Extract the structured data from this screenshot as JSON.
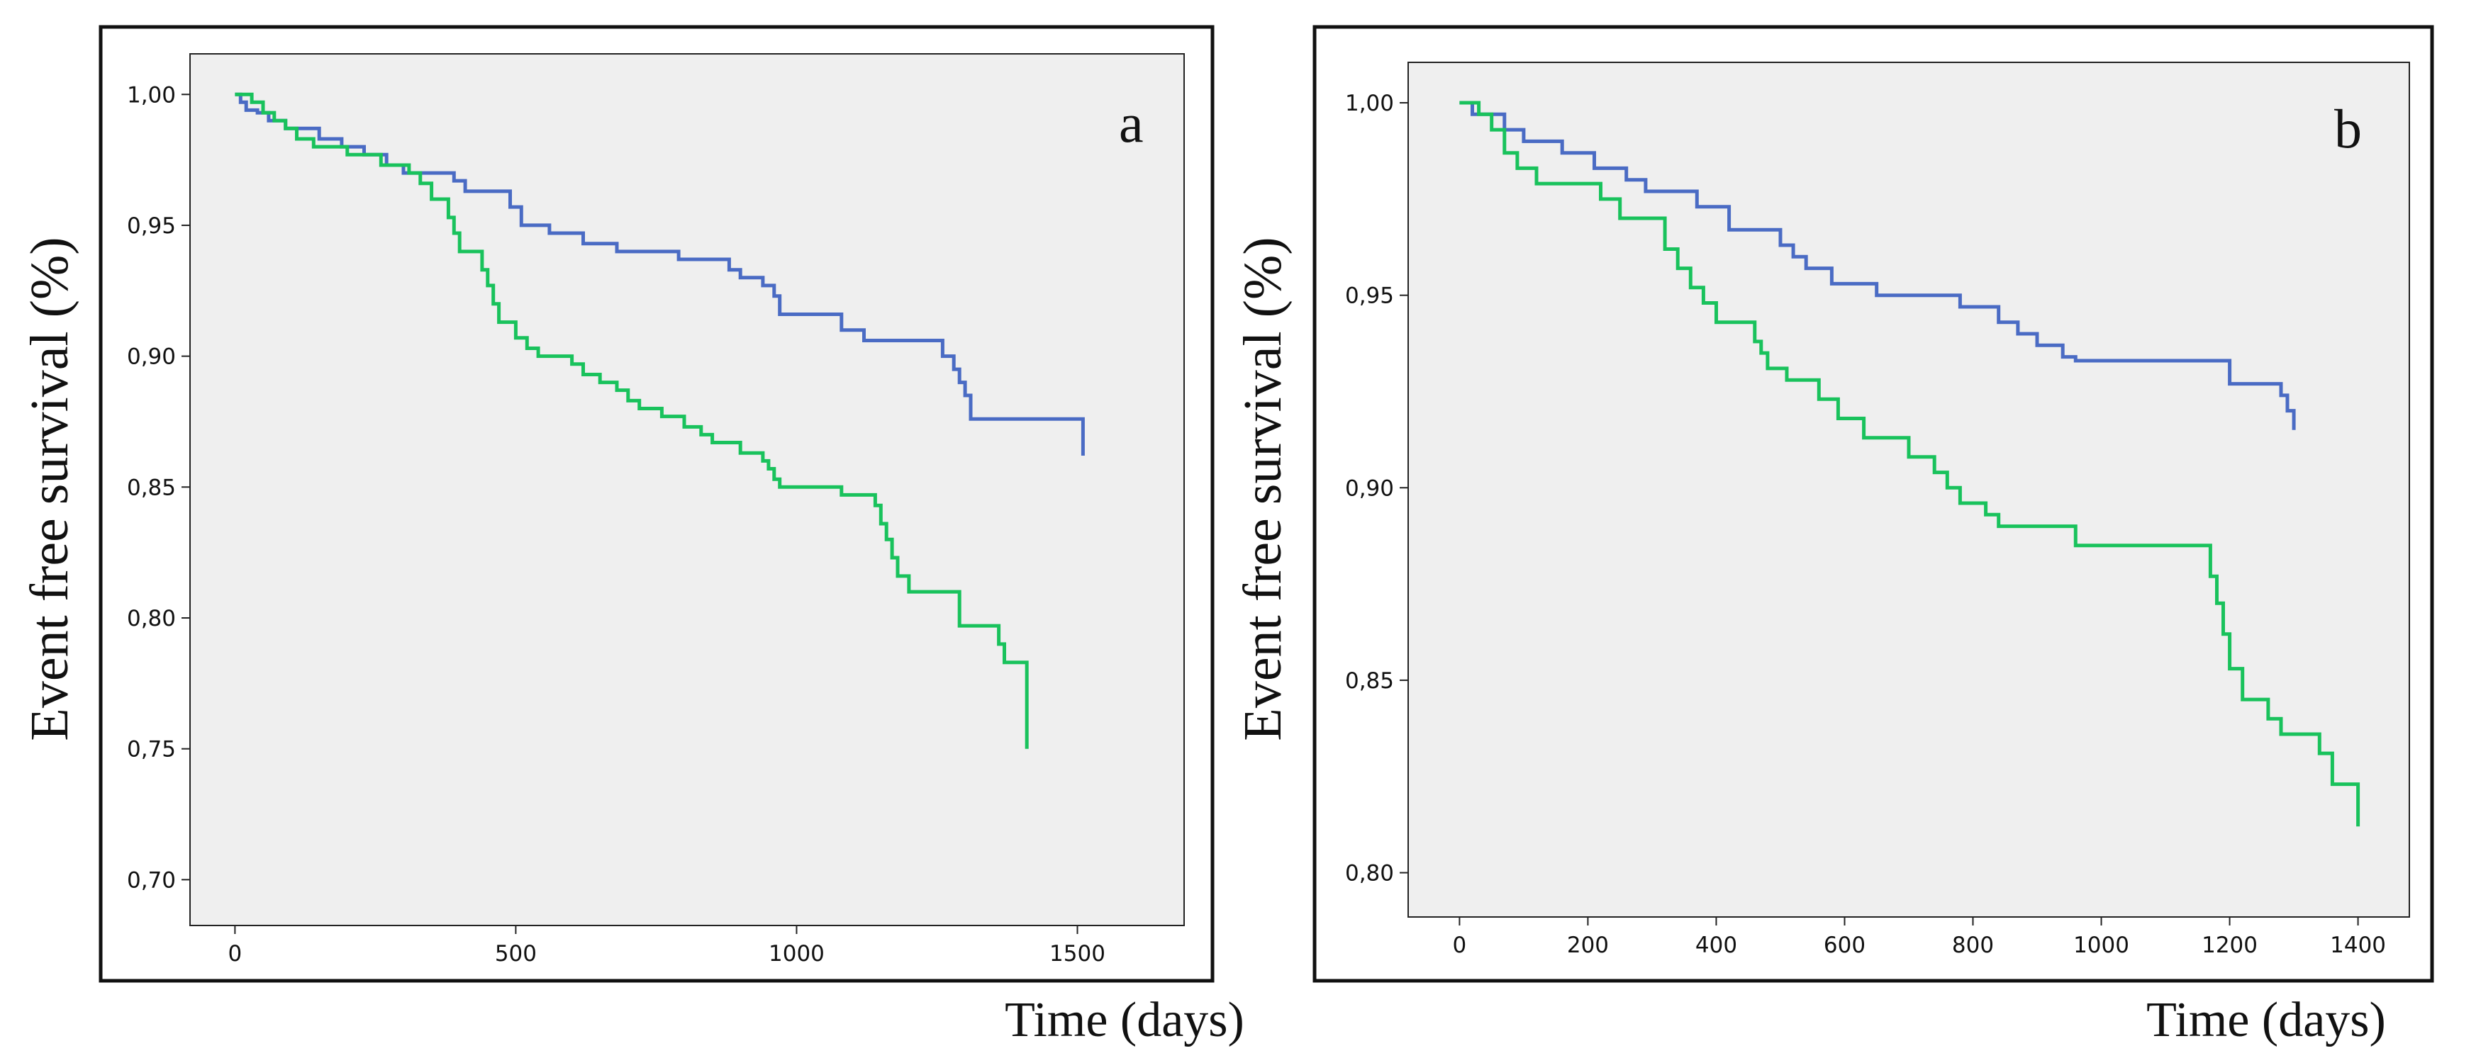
{
  "colors": {
    "series_blue": "#4a6bc4",
    "series_green": "#19c25c",
    "plot_bg": "#efefef"
  },
  "chart_data": [
    {
      "type": "line",
      "step": true,
      "panel_label": "a",
      "ylabel": "Event free survival (%)",
      "xlabel": "Time (days)",
      "xlim": [
        -80,
        1690
      ],
      "ylim": [
        0.6825,
        1.0155
      ],
      "xticks": [
        0,
        500,
        1000,
        1500
      ],
      "xtick_labels": [
        "0",
        "500",
        "1000",
        "1500"
      ],
      "yticks": [
        0.7,
        0.75,
        0.8,
        0.85,
        0.9,
        0.95,
        1.0
      ],
      "ytick_labels": [
        "0,70",
        "0,75",
        "0,80",
        "0,85",
        "0,90",
        "0,95",
        "1,00"
      ],
      "series": [
        {
          "name": "blue",
          "color": "#4a6bc4",
          "x": [
            0,
            10,
            20,
            40,
            60,
            90,
            150,
            190,
            230,
            270,
            300,
            390,
            410,
            490,
            510,
            560,
            620,
            680,
            790,
            880,
            900,
            940,
            960,
            970,
            1080,
            1120,
            1260,
            1280,
            1290,
            1300,
            1310,
            1510
          ],
          "y": [
            1.0,
            0.997,
            0.994,
            0.993,
            0.99,
            0.987,
            0.983,
            0.98,
            0.977,
            0.973,
            0.97,
            0.967,
            0.963,
            0.957,
            0.95,
            0.947,
            0.943,
            0.94,
            0.937,
            0.933,
            0.93,
            0.927,
            0.923,
            0.916,
            0.91,
            0.906,
            0.9,
            0.895,
            0.89,
            0.885,
            0.876,
            0.862
          ]
        },
        {
          "name": "green",
          "color": "#19c25c",
          "x": [
            0,
            30,
            50,
            70,
            90,
            110,
            140,
            200,
            260,
            310,
            330,
            350,
            380,
            390,
            400,
            440,
            450,
            460,
            470,
            500,
            520,
            540,
            600,
            620,
            650,
            680,
            700,
            720,
            760,
            800,
            830,
            850,
            900,
            940,
            950,
            960,
            970,
            1080,
            1140,
            1150,
            1160,
            1170,
            1180,
            1200,
            1290,
            1360,
            1370,
            1410
          ],
          "y": [
            1.0,
            0.997,
            0.993,
            0.99,
            0.987,
            0.983,
            0.98,
            0.977,
            0.973,
            0.97,
            0.966,
            0.96,
            0.953,
            0.947,
            0.94,
            0.933,
            0.927,
            0.92,
            0.913,
            0.907,
            0.903,
            0.9,
            0.897,
            0.893,
            0.89,
            0.887,
            0.883,
            0.88,
            0.877,
            0.873,
            0.87,
            0.867,
            0.863,
            0.86,
            0.857,
            0.853,
            0.85,
            0.847,
            0.843,
            0.836,
            0.83,
            0.823,
            0.816,
            0.81,
            0.797,
            0.79,
            0.783,
            0.75
          ]
        }
      ]
    },
    {
      "type": "line",
      "step": true,
      "panel_label": "b",
      "ylabel": "Event free survival (%)",
      "xlabel": "Time (days)",
      "xlim": [
        -80,
        1480
      ],
      "ylim": [
        0.7885,
        1.0105
      ],
      "xticks": [
        0,
        200,
        400,
        600,
        800,
        1000,
        1200,
        1400
      ],
      "xtick_labels": [
        "0",
        "200",
        "400",
        "600",
        "800",
        "1000",
        "1200",
        "1400"
      ],
      "yticks": [
        0.8,
        0.85,
        0.9,
        0.95,
        1.0
      ],
      "ytick_labels": [
        "0,80",
        "0,85",
        "0,90",
        "0,95",
        "1,00"
      ],
      "series": [
        {
          "name": "blue",
          "color": "#4a6bc4",
          "x": [
            0,
            20,
            70,
            100,
            160,
            210,
            260,
            290,
            370,
            420,
            500,
            520,
            540,
            580,
            650,
            780,
            840,
            870,
            900,
            940,
            960,
            1200,
            1280,
            1290,
            1300
          ],
          "y": [
            1.0,
            0.997,
            0.993,
            0.99,
            0.987,
            0.983,
            0.98,
            0.977,
            0.973,
            0.967,
            0.963,
            0.96,
            0.957,
            0.953,
            0.95,
            0.947,
            0.943,
            0.94,
            0.937,
            0.934,
            0.933,
            0.927,
            0.924,
            0.92,
            0.915
          ]
        },
        {
          "name": "green",
          "color": "#19c25c",
          "x": [
            0,
            30,
            50,
            70,
            90,
            120,
            220,
            250,
            320,
            340,
            360,
            380,
            400,
            460,
            470,
            480,
            510,
            560,
            590,
            630,
            700,
            740,
            760,
            780,
            820,
            840,
            960,
            1170,
            1180,
            1190,
            1200,
            1220,
            1260,
            1280,
            1340,
            1360,
            1400
          ],
          "y": [
            1.0,
            0.997,
            0.993,
            0.987,
            0.983,
            0.979,
            0.975,
            0.97,
            0.962,
            0.957,
            0.952,
            0.948,
            0.943,
            0.938,
            0.935,
            0.931,
            0.928,
            0.923,
            0.918,
            0.913,
            0.908,
            0.904,
            0.9,
            0.896,
            0.893,
            0.89,
            0.885,
            0.877,
            0.87,
            0.862,
            0.853,
            0.845,
            0.84,
            0.836,
            0.831,
            0.823,
            0.812
          ]
        }
      ]
    }
  ]
}
